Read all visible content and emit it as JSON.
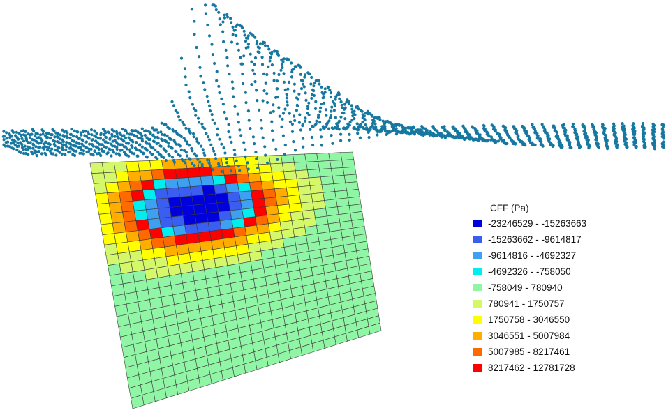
{
  "legend": {
    "title": "CFF (Pa)",
    "entries": [
      {
        "label": "-23246529 - -15263663",
        "color": "#0000dd"
      },
      {
        "label": "-15263662 - -9614817",
        "color": "#3a5ef0"
      },
      {
        "label": "-9614816 - -4692327",
        "color": "#3ea0f0"
      },
      {
        "label": "-4692326 - -758050",
        "color": "#00eeee"
      },
      {
        "label": "-758049 - 780940",
        "color": "#90f6a6"
      },
      {
        "label": "780941 - 1750757",
        "color": "#d4f86a"
      },
      {
        "label": "1750758 - 3046550",
        "color": "#ffff00"
      },
      {
        "label": "3046551 - 5007984",
        "color": "#ffae00"
      },
      {
        "label": "5007985 - 8217461",
        "color": "#ff6a00"
      },
      {
        "label": "8217462 - 12781728",
        "color": "#ff0000"
      }
    ]
  },
  "fault_grid": {
    "rows": 24,
    "cols": 22
  },
  "displacement_points": {
    "color": "#1678a0"
  }
}
